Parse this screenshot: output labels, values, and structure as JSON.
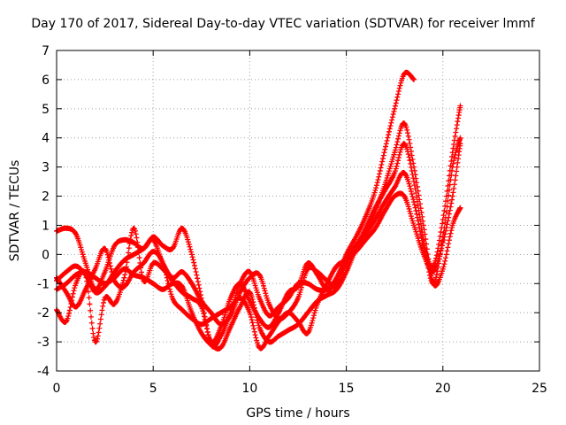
{
  "chart_data": {
    "type": "scatter",
    "title": "Day 170 of 2017, Sidereal Day-to-day VTEC variation (SDTVAR) for receiver lmmf",
    "xlabel": "GPS time / hours",
    "ylabel": "SDTVAR / TECUs",
    "xlim": [
      0,
      25
    ],
    "ylim": [
      -4,
      7
    ],
    "xticks": [
      0,
      5,
      10,
      15,
      20,
      25
    ],
    "yticks": [
      -4,
      -3,
      -2,
      -1,
      0,
      1,
      2,
      3,
      4,
      5,
      6,
      7
    ],
    "grid": true,
    "marker": "+",
    "series": [
      {
        "color": "#ff0000",
        "x": [
          0.0,
          0.5,
          1.0,
          1.5,
          2.0,
          2.5,
          3.0,
          3.5,
          4.0,
          4.5,
          5.0,
          5.5,
          6.0,
          6.5,
          7.0,
          7.5,
          8.0,
          8.5,
          9.0,
          9.5,
          10.0,
          10.5,
          11.0,
          11.5,
          12.0,
          12.5,
          13.0,
          13.5,
          14.0,
          14.5,
          15.0,
          15.5,
          16.0,
          16.5,
          17.0,
          17.5,
          18.0,
          18.5
        ],
        "y": [
          0.8,
          0.9,
          0.7,
          -0.3,
          -1.2,
          -0.6,
          0.3,
          0.5,
          0.4,
          0.2,
          0.6,
          0.3,
          0.2,
          0.9,
          0.0,
          -1.5,
          -3.1,
          -2.8,
          -2.0,
          -1.0,
          -0.6,
          -1.5,
          -2.1,
          -1.8,
          -1.5,
          -1.0,
          -1.0,
          -1.2,
          -1.2,
          -0.8,
          0.0,
          0.6,
          1.3,
          2.2,
          3.6,
          5.0,
          6.2,
          6.0
        ]
      },
      {
        "color": "#ff0000",
        "x": [
          0.0,
          0.5,
          1.0,
          1.5,
          2.0,
          2.5,
          3.0,
          3.5,
          4.0,
          4.5,
          5.0,
          5.5,
          6.0,
          6.5,
          7.0,
          7.5,
          8.0,
          8.5,
          9.0,
          9.5,
          10.0,
          10.5,
          11.0,
          11.5,
          12.0,
          12.5,
          13.0,
          13.5,
          14.0,
          14.5,
          15.0,
          15.5,
          16.0,
          16.5,
          17.0,
          17.5,
          18.0,
          18.5,
          19.0,
          19.5,
          20.0,
          20.5,
          20.9
        ],
        "y": [
          -1.9,
          -2.3,
          -1.0,
          -0.7,
          -3.0,
          -1.5,
          -1.7,
          -0.8,
          0.9,
          -0.9,
          -0.3,
          -0.5,
          -0.9,
          -1.3,
          -1.5,
          -1.8,
          -3.0,
          -2.5,
          -1.5,
          -1.0,
          -1.6,
          -2.2,
          -2.5,
          -2.0,
          -1.3,
          -1.1,
          -0.3,
          -0.7,
          -1.2,
          -0.9,
          -0.1,
          0.3,
          0.8,
          1.5,
          2.4,
          3.5,
          4.5,
          3.0,
          1.0,
          -1.0,
          -0.5,
          1.0,
          1.6
        ]
      },
      {
        "color": "#ff0000",
        "x": [
          0.0,
          0.5,
          1.0,
          1.5,
          2.0,
          2.5,
          3.0,
          3.5,
          4.0,
          4.5,
          5.0,
          5.5,
          6.0,
          6.5,
          7.0,
          7.5,
          8.0,
          8.5,
          9.0,
          9.5,
          10.0,
          10.5,
          11.0,
          11.5,
          12.0,
          12.5,
          13.0,
          13.5,
          14.0,
          14.5,
          15.0,
          15.5,
          16.0,
          16.5,
          17.0,
          17.5,
          18.0,
          18.5,
          19.0,
          19.5,
          20.0,
          20.5,
          20.9
        ],
        "y": [
          -0.8,
          -1.3,
          -1.8,
          -1.2,
          -0.5,
          0.2,
          -0.9,
          -1.1,
          -0.6,
          -0.3,
          0.1,
          -0.3,
          -1.5,
          -1.9,
          -2.2,
          -2.4,
          -2.2,
          -2.0,
          -1.8,
          -1.5,
          -2.0,
          -3.2,
          -2.8,
          -2.3,
          -2.0,
          -2.3,
          -2.7,
          -1.7,
          -1.0,
          -0.4,
          -0.2,
          0.1,
          0.5,
          0.9,
          1.5,
          2.0,
          2.0,
          1.0,
          0.0,
          -0.6,
          0.4,
          2.0,
          3.8
        ]
      },
      {
        "color": "#ff0000",
        "x": [
          0.0,
          0.5,
          1.0,
          1.5,
          2.0,
          2.5,
          3.0,
          3.5,
          4.0,
          4.5,
          5.0,
          5.5,
          6.0,
          6.5,
          7.0,
          7.5,
          8.0,
          8.5,
          9.0,
          9.5,
          10.0,
          10.5,
          11.0,
          11.5,
          12.0,
          12.5,
          13.0,
          13.5,
          14.0,
          14.5,
          15.0,
          15.5,
          16.0,
          16.5,
          17.0,
          17.5,
          18.0,
          18.5,
          19.0,
          19.5,
          20.0,
          20.5,
          20.9
        ],
        "y": [
          -1.2,
          -1.0,
          -0.7,
          -0.6,
          -0.8,
          -1.0,
          -0.8,
          -0.5,
          -0.7,
          -0.8,
          -1.0,
          -1.2,
          -1.0,
          -1.1,
          -2.0,
          -2.7,
          -3.1,
          -3.2,
          -2.5,
          -1.8,
          -1.3,
          -2.5,
          -3.0,
          -2.8,
          -2.6,
          -2.4,
          -2.0,
          -1.6,
          -1.4,
          -1.2,
          -0.6,
          0.2,
          0.9,
          1.6,
          2.2,
          2.8,
          3.8,
          2.5,
          0.5,
          -1.0,
          0.6,
          3.0,
          4.0
        ]
      },
      {
        "color": "#ff0000",
        "x": [
          0.0,
          0.5,
          1.0,
          1.5,
          2.0,
          2.5,
          3.0,
          3.5,
          4.0,
          4.5,
          5.0,
          5.5,
          6.0,
          6.5,
          7.0,
          7.5,
          8.0,
          8.5,
          9.0,
          9.5,
          10.0,
          10.5,
          11.0,
          11.5,
          12.0,
          12.5,
          13.0,
          13.5,
          14.0,
          14.5,
          15.0,
          15.5,
          16.0,
          16.5,
          17.0,
          17.5,
          18.0,
          18.5,
          19.0,
          19.5,
          20.0,
          20.5,
          20.9
        ],
        "y": [
          -0.9,
          -0.6,
          -0.4,
          -0.7,
          -1.3,
          -1.1,
          -0.6,
          -0.2,
          0.0,
          0.2,
          0.5,
          -0.3,
          -0.8,
          -0.6,
          -1.0,
          -1.6,
          -2.0,
          -2.4,
          -2.1,
          -1.3,
          -0.8,
          -0.7,
          -1.7,
          -2.2,
          -2.0,
          -1.5,
          -0.5,
          -0.6,
          -0.9,
          -1.1,
          -0.3,
          0.3,
          0.7,
          1.2,
          1.8,
          2.3,
          2.8,
          1.8,
          0.3,
          -0.4,
          1.2,
          3.5,
          5.1
        ]
      }
    ]
  }
}
